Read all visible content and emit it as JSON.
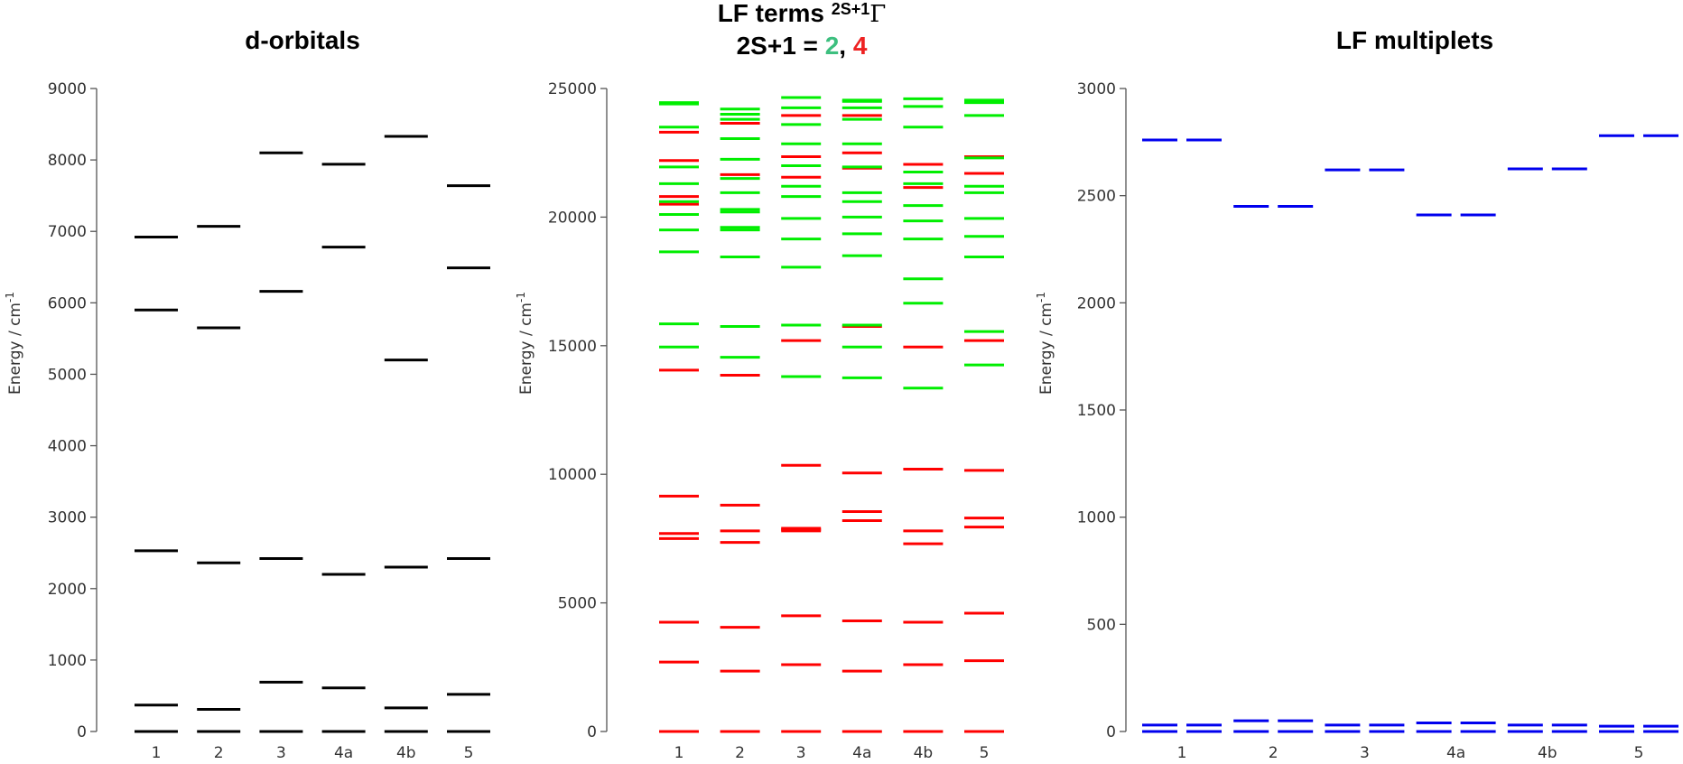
{
  "chart_data": [
    {
      "type": "energy-level",
      "title": "d-orbitals",
      "ylabel": "Energy / cm",
      "ylabel_sup": "-1",
      "ylim": [
        0,
        9000
      ],
      "yticks": [
        0,
        1000,
        2000,
        3000,
        4000,
        5000,
        6000,
        7000,
        8000,
        9000
      ],
      "categories": [
        "1",
        "2",
        "3",
        "4a",
        "4b",
        "5"
      ],
      "series": [
        {
          "color": "#000000",
          "levels": [
            [
              0,
              370,
              2530,
              5900,
              6920
            ],
            [
              0,
              310,
              2360,
              5650,
              7070
            ],
            [
              0,
              690,
              2420,
              6160,
              8100
            ],
            [
              0,
              610,
              2200,
              6780,
              7940
            ],
            [
              0,
              330,
              2300,
              5200,
              8330
            ],
            [
              0,
              520,
              2420,
              6490,
              7640
            ]
          ]
        }
      ]
    },
    {
      "type": "energy-level",
      "title": "LF terms ",
      "title_sup": "2S+1",
      "title_symbol": "Γ",
      "subtitle_prefix": "2S+1 = ",
      "subtitle_doublet": "2",
      "subtitle_sep": ", ",
      "subtitle_quartet": "4",
      "ylabel": "Energy / cm",
      "ylabel_sup": "-1",
      "ylim": [
        0,
        25000
      ],
      "yticks": [
        0,
        5000,
        10000,
        15000,
        20000,
        25000
      ],
      "categories": [
        "1",
        "2",
        "3",
        "4a",
        "4b",
        "5"
      ],
      "series": [
        {
          "color": "#ff0000",
          "levels": [
            [
              0,
              2700,
              4250,
              7500,
              7700,
              9150,
              14050,
              20500,
              20800,
              22200,
              23300
            ],
            [
              0,
              2350,
              4050,
              7350,
              7800,
              8800,
              13850,
              21650,
              23650
            ],
            [
              0,
              2600,
              4500,
              7800,
              7850,
              7900,
              10350,
              15200,
              21550,
              22350,
              23950
            ],
            [
              0,
              2350,
              4300,
              8200,
              8550,
              10050,
              15750,
              21900,
              22500,
              23950
            ],
            [
              0,
              2600,
              4250,
              7300,
              7800,
              10200,
              14950,
              21150,
              22050
            ],
            [
              0,
              2750,
              4600,
              7950,
              8300,
              10150,
              15200,
              21700,
              22350
            ]
          ]
        },
        {
          "color": "#00ee00",
          "levels": [
            [
              14950,
              15850,
              18650,
              19500,
              20100,
              20600,
              21300,
              21950,
              23500,
              24400,
              24450
            ],
            [
              14550,
              15750,
              18450,
              19500,
              19600,
              20200,
              20300,
              20950,
              21500,
              22250,
              23050,
              23800,
              24000,
              24200
            ],
            [
              13800,
              15800,
              18050,
              19150,
              19950,
              20800,
              21200,
              22000,
              22850,
              23600,
              24250,
              24650
            ],
            [
              13750,
              14950,
              15800,
              18500,
              19350,
              20000,
              20600,
              20950,
              21950,
              22850,
              23800,
              24250,
              24500,
              24550
            ],
            [
              13350,
              16650,
              17600,
              19150,
              19850,
              20450,
              21300,
              21750,
              23500,
              24300,
              24600
            ],
            [
              14250,
              15550,
              18450,
              19250,
              19950,
              20950,
              21200,
              22300,
              23950,
              24450,
              24500,
              24550
            ]
          ]
        }
      ]
    },
    {
      "type": "energy-level",
      "title": "LF multiplets",
      "ylabel": "Energy / cm",
      "ylabel_sup": "-1",
      "ylim": [
        0,
        3000
      ],
      "yticks": [
        0,
        500,
        1000,
        1500,
        2000,
        2500,
        3000
      ],
      "categories": [
        "1",
        "2",
        "3",
        "4a",
        "4b",
        "5"
      ],
      "series": [
        {
          "color": "#0000ee",
          "levels": [
            [
              0,
              30,
              2760
            ],
            [
              0,
              50,
              2450
            ],
            [
              0,
              30,
              2620
            ],
            [
              0,
              40,
              2410
            ],
            [
              0,
              30,
              2625
            ],
            [
              0,
              25,
              2780
            ]
          ]
        }
      ]
    }
  ]
}
